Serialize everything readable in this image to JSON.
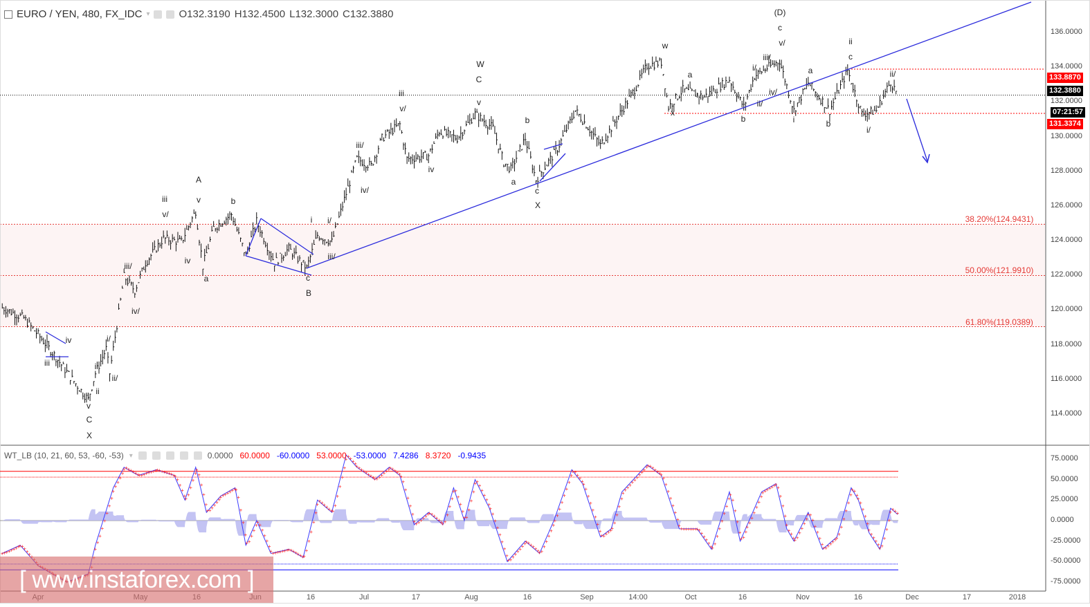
{
  "header": {
    "symbol": "EURO / YEN, 480, FX_IDC",
    "open": "O132.3190",
    "high": "H132.4500",
    "low": "L132.3000",
    "close": "C132.3880"
  },
  "indicator": {
    "title": "WT_LB (10, 21, 60, 53, -60, -53)",
    "values": [
      {
        "text": "0.0000",
        "color": "#555555"
      },
      {
        "text": "60.0000",
        "color": "#ff0000"
      },
      {
        "text": "-60.0000",
        "color": "#0000ff"
      },
      {
        "text": "53.0000",
        "color": "#ff0000"
      },
      {
        "text": "-53.0000",
        "color": "#0000ff"
      },
      {
        "text": "7.4286",
        "color": "#0000ff"
      },
      {
        "text": "8.3720",
        "color": "#ff0000"
      },
      {
        "text": "-0.9435",
        "color": "#0000ff"
      }
    ]
  },
  "price_tags": {
    "resistance": "133.8870",
    "last": "132.3880",
    "countdown": "07:21:57",
    "support": "131.3374"
  },
  "fib_levels": [
    {
      "label": "38.20%(124.9431)",
      "price": 124.9431
    },
    {
      "label": "50.00%(121.9910)",
      "price": 121.991
    },
    {
      "label": "61.80%(119.0389)",
      "price": 119.0389
    }
  ],
  "watermark": "[ www.instaforex.com ]",
  "colors": {
    "up_trend": "#2b2bdc",
    "fib": "#e53935",
    "wt1": "#3b3bff",
    "wt2": "#ff2020",
    "hist": "#b4b4f0",
    "tag_red": "#ff0000"
  },
  "annotations": [
    "(D)",
    "c",
    "v/",
    "iii/",
    "i/",
    "iv/",
    "ii/",
    "w",
    "a",
    "x",
    "b",
    "ii",
    "c",
    "a",
    "ii/",
    "i",
    "b",
    "i/",
    "W",
    "C",
    "v",
    "b",
    "a",
    "c",
    "X",
    "iii",
    "v/",
    "iii/",
    "iv/",
    "iv",
    "i",
    "i/",
    "iii/",
    "c",
    "B",
    "A",
    "v",
    "b",
    "iii",
    "v/",
    "iv",
    "a",
    "iii/",
    "iv/",
    "i/",
    "ii/",
    "i",
    "ii",
    "v",
    "C",
    "X",
    "iv",
    "iii"
  ],
  "chart_data": [
    {
      "type": "line",
      "title": "EURO / YEN, 480, FX_IDC",
      "ylim": [
        113,
        137.5
      ],
      "yticks": [
        "136.0000",
        "134.0000",
        "132.0000",
        "130.0000",
        "128.0000",
        "126.0000",
        "124.0000",
        "122.0000",
        "120.0000",
        "118.0000",
        "116.0000",
        "114.0000"
      ],
      "xticks": [
        "Apr",
        "May",
        "16",
        "Jun",
        "16",
        "Jul",
        "17",
        "Aug",
        "16",
        "Sep",
        "14:00",
        "Oct",
        "16",
        "Nov",
        "16",
        "Dec",
        "17",
        "2018"
      ],
      "series": [
        {
          "values": [
            [
              "2017-03-22",
              120.14
            ],
            [
              "2017-03-28",
              119.54
            ],
            [
              "2017-04-02",
              118.34
            ],
            [
              "2017-04-05",
              117.55
            ],
            [
              "2017-04-10",
              116.15
            ],
            [
              "2017-04-15",
              114.84
            ],
            [
              "2017-04-17",
              116.35
            ],
            [
              "2017-04-20",
              117.75
            ],
            [
              "2017-04-21",
              116.35
            ],
            [
              "2017-04-23",
              119.14
            ],
            [
              "2017-04-25",
              121.93
            ],
            [
              "2017-04-28",
              121.13
            ],
            [
              "2017-05-01",
              122.73
            ],
            [
              "2017-05-06",
              124.12
            ],
            [
              "2017-05-11",
              123.92
            ],
            [
              "2017-05-15",
              125.72
            ],
            [
              "2017-05-17",
              122.53
            ],
            [
              "2017-05-20",
              124.72
            ],
            [
              "2017-05-25",
              125.52
            ],
            [
              "2017-05-29",
              123.13
            ],
            [
              "2017-06-01",
              125.12
            ],
            [
              "2017-06-06",
              122.73
            ],
            [
              "2017-06-10",
              123.53
            ],
            [
              "2017-06-15",
              122.41
            ],
            [
              "2017-06-18",
              124.32
            ],
            [
              "2017-06-22",
              123.92
            ],
            [
              "2017-06-26",
              126.71
            ],
            [
              "2017-06-29",
              128.71
            ],
            [
              "2017-07-03",
              128.31
            ],
            [
              "2017-07-06",
              129.9
            ],
            [
              "2017-07-11",
              130.7
            ],
            [
              "2017-07-13",
              128.71
            ],
            [
              "2017-07-19",
              128.91
            ],
            [
              "2017-07-22",
              130.3
            ],
            [
              "2017-07-27",
              129.9
            ],
            [
              "2017-08-01",
              131.3
            ],
            [
              "2017-08-06",
              130.5
            ],
            [
              "2017-08-09",
              128.51
            ],
            [
              "2017-08-11",
              128.11
            ],
            [
              "2017-08-15",
              129.9
            ],
            [
              "2017-08-18",
              127.51
            ],
            [
              "2017-08-24",
              129.3
            ],
            [
              "2017-08-29",
              131.5
            ],
            [
              "2017-09-01",
              130.7
            ],
            [
              "2017-09-05",
              129.5
            ],
            [
              "2017-09-11",
              131.5
            ],
            [
              "2017-09-15",
              132.89
            ],
            [
              "2017-09-18",
              134.09
            ],
            [
              "2017-09-22",
              134.29
            ],
            [
              "2017-09-24",
              131.7
            ],
            [
              "2017-09-28",
              132.69
            ],
            [
              "2017-10-04",
              132.29
            ],
            [
              "2017-10-11",
              133.29
            ],
            [
              "2017-10-15",
              131.7
            ],
            [
              "2017-10-18",
              133.49
            ],
            [
              "2017-10-21",
              133.89
            ],
            [
              "2017-10-25",
              134.37
            ],
            [
              "2017-10-29",
              131.5
            ],
            [
              "2017-11-02",
              133.09
            ],
            [
              "2017-11-08",
              131.5
            ],
            [
              "2017-11-13",
              133.81
            ],
            [
              "2017-11-17",
              131.3
            ],
            [
              "2017-11-21",
              131.5
            ],
            [
              "2017-11-25",
              133.17
            ],
            [
              "2017-11-27",
              132.39
            ]
          ]
        }
      ],
      "hlines": [
        133.887,
        132.388,
        131.3374
      ]
    },
    {
      "type": "line",
      "title": "WT_LB (10, 21, 60, 53, -60, -53)",
      "ylim": [
        -85,
        85
      ],
      "yticks": [
        "75.0000",
        "50.0000",
        "25.0000",
        "0.0000",
        "-25.0000",
        "-50.0000",
        "-75.0000"
      ],
      "levels": [
        60,
        53,
        -53,
        -60
      ],
      "series": [
        {
          "values": [
            [
              "2017-03-22",
              -40
            ],
            [
              "2017-03-27",
              -30
            ],
            [
              "2017-04-01",
              -55
            ],
            [
              "2017-04-05",
              -65
            ],
            [
              "2017-04-09",
              -75
            ],
            [
              "2017-04-15",
              -65
            ],
            [
              "2017-04-17",
              -30
            ],
            [
              "2017-04-22",
              40
            ],
            [
              "2017-04-25",
              65
            ],
            [
              "2017-04-29",
              55
            ],
            [
              "2017-05-04",
              62
            ],
            [
              "2017-05-09",
              55
            ],
            [
              "2017-05-12",
              25
            ],
            [
              "2017-05-15",
              65
            ],
            [
              "2017-05-18",
              10
            ],
            [
              "2017-05-22",
              30
            ],
            [
              "2017-05-26",
              40
            ],
            [
              "2017-05-29",
              -30
            ],
            [
              "2017-06-01",
              0
            ],
            [
              "2017-06-05",
              -40
            ],
            [
              "2017-06-10",
              -35
            ],
            [
              "2017-06-14",
              -45
            ],
            [
              "2017-06-18",
              25
            ],
            [
              "2017-06-22",
              10
            ],
            [
              "2017-06-26",
              80
            ],
            [
              "2017-06-29",
              65
            ],
            [
              "2017-07-04",
              50
            ],
            [
              "2017-07-08",
              65
            ],
            [
              "2017-07-11",
              55
            ],
            [
              "2017-07-15",
              -5
            ],
            [
              "2017-07-19",
              10
            ],
            [
              "2017-07-23",
              -5
            ],
            [
              "2017-07-26",
              40
            ],
            [
              "2017-07-29",
              0
            ],
            [
              "2017-08-01",
              50
            ],
            [
              "2017-08-05",
              15
            ],
            [
              "2017-08-10",
              -50
            ],
            [
              "2017-08-15",
              -25
            ],
            [
              "2017-08-19",
              -40
            ],
            [
              "2017-08-23",
              0
            ],
            [
              "2017-08-28",
              62
            ],
            [
              "2017-08-31",
              45
            ],
            [
              "2017-09-05",
              -20
            ],
            [
              "2017-09-08",
              -10
            ],
            [
              "2017-09-11",
              35
            ],
            [
              "2017-09-18",
              68
            ],
            [
              "2017-09-22",
              55
            ],
            [
              "2017-09-27",
              -10
            ],
            [
              "2017-10-02",
              -10
            ],
            [
              "2017-10-06",
              -35
            ],
            [
              "2017-10-11",
              35
            ],
            [
              "2017-10-14",
              -25
            ],
            [
              "2017-10-16",
              -5
            ],
            [
              "2017-10-20",
              35
            ],
            [
              "2017-10-24",
              45
            ],
            [
              "2017-10-27",
              -10
            ],
            [
              "2017-10-29",
              -25
            ],
            [
              "2017-11-02",
              10
            ],
            [
              "2017-11-06",
              -35
            ],
            [
              "2017-11-10",
              -20
            ],
            [
              "2017-11-14",
              40
            ],
            [
              "2017-11-16",
              25
            ],
            [
              "2017-11-19",
              -15
            ],
            [
              "2017-11-22",
              -35
            ],
            [
              "2017-11-25",
              15
            ],
            [
              "2017-11-27",
              7.43
            ]
          ]
        }
      ]
    }
  ]
}
